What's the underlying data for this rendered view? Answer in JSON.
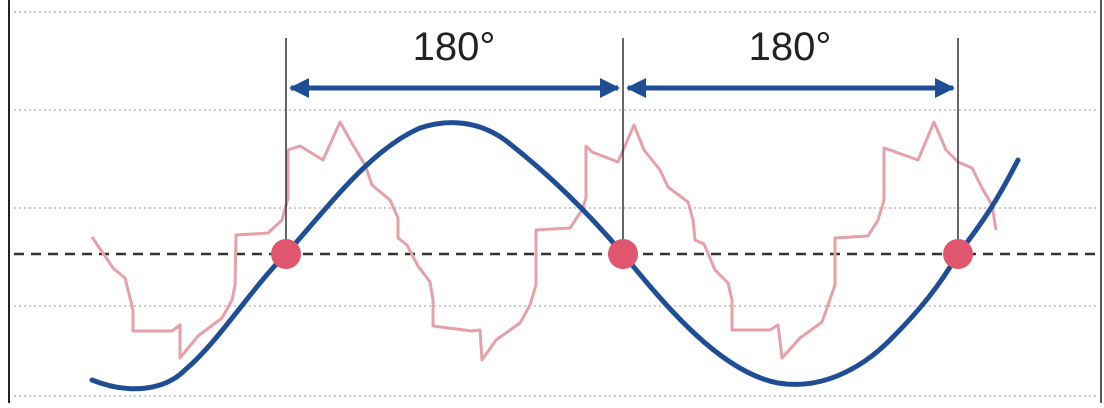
{
  "labels": {
    "span_left": "180°",
    "span_right": "180°"
  },
  "colors": {
    "sine_wave": "#1f4e96",
    "distorted_wave": "#e6a0a8",
    "zero_points": "#e0566e",
    "arrows": "#1f4e96",
    "dashed_axis": "#333333",
    "grid_lines": "#b8b8b8",
    "markers": "#333333",
    "border": "#222222"
  }
}
